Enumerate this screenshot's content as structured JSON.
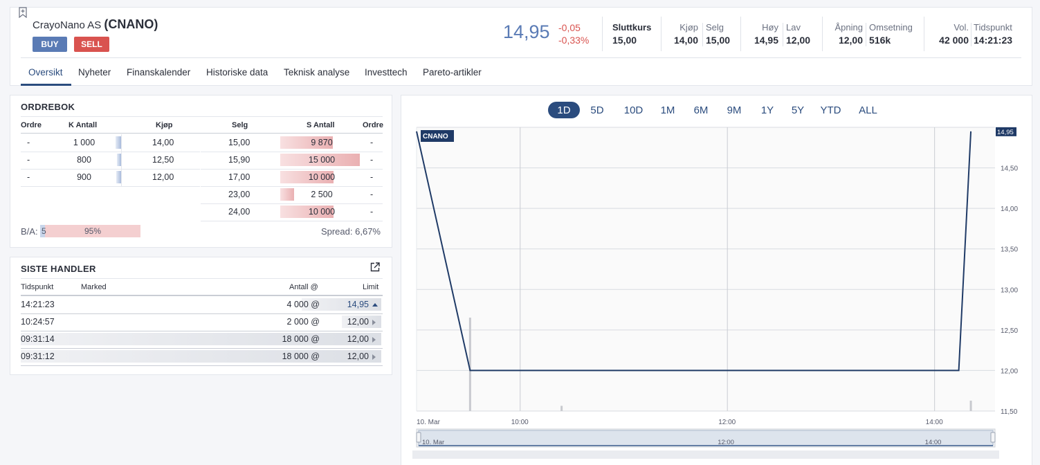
{
  "header": {
    "company_name": "CrayoNano AS",
    "ticker": "(CNANO)",
    "buy_label": "BUY",
    "sell_label": "SELL",
    "last_price": "14,95",
    "change_abs": "-0,05",
    "change_pct": "-0,33%",
    "close_label": "Sluttkurs",
    "close_value": "15,00",
    "bid_label": "Kjøp",
    "bid_value": "14,00",
    "ask_label": "Selg",
    "ask_value": "15,00",
    "high_label": "Høy",
    "high_value": "14,95",
    "low_label": "Lav",
    "low_value": "12,00",
    "open_label": "Åpning",
    "open_value": "12,00",
    "turnover_label": "Omsetning",
    "turnover_value": "516k",
    "volume_label": "Vol.",
    "volume_value": "42 000",
    "time_label": "Tidspunkt",
    "time_value": "14:21:23"
  },
  "tabs": [
    "Oversikt",
    "Nyheter",
    "Finanskalender",
    "Historiske data",
    "Teknisk analyse",
    "Investtech",
    "Pareto-artikler"
  ],
  "active_tab": "Oversikt",
  "orderbook": {
    "title": "ORDREBOK",
    "headers": [
      "Ordre",
      "K Antall",
      "Kjøp",
      "Selg",
      "S Antall",
      "Ordre"
    ],
    "bids": [
      {
        "orders": "-",
        "qty": "1 000",
        "price": "14,00",
        "fill": 0.07
      },
      {
        "orders": "-",
        "qty": "800",
        "price": "12,50",
        "fill": 0.05
      },
      {
        "orders": "-",
        "qty": "900",
        "price": "12,00",
        "fill": 0.06
      }
    ],
    "asks": [
      {
        "price": "15,00",
        "qty": "9 870",
        "orders": "-",
        "fill": 0.66
      },
      {
        "price": "15,90",
        "qty": "15 000",
        "orders": "-",
        "fill": 1.0
      },
      {
        "price": "17,00",
        "qty": "10 000",
        "orders": "-",
        "fill": 0.67
      },
      {
        "price": "23,00",
        "qty": "2 500",
        "orders": "-",
        "fill": 0.17
      },
      {
        "price": "24,00",
        "qty": "10 000",
        "orders": "-",
        "fill": 0.67
      }
    ],
    "ba_label": "B/A:",
    "ba_bid": "5",
    "ba_ask": "95%",
    "ba_bid_fill": 0.05,
    "spread_label": "Spread:",
    "spread_value": "6,67%"
  },
  "trades": {
    "title": "SISTE HANDLER",
    "headers": [
      "Tidspunkt",
      "Marked",
      "Antall @",
      "Limit"
    ],
    "rows": [
      {
        "time": "14:21:23",
        "market": "",
        "qty": "4 000 @",
        "price": "14,95",
        "dir": "up",
        "fill": 0.22
      },
      {
        "time": "10:24:57",
        "market": "",
        "qty": "2 000 @",
        "price": "12,00",
        "dir": "flat",
        "fill": 0.11
      },
      {
        "time": "09:31:14",
        "market": "",
        "qty": "18 000 @",
        "price": "12,00",
        "dir": "flat",
        "fill": 1.0
      },
      {
        "time": "09:31:12",
        "market": "",
        "qty": "18 000 @",
        "price": "12,00",
        "dir": "flat",
        "fill": 1.0
      }
    ]
  },
  "chart": {
    "ranges": [
      "1D",
      "5D",
      "10D",
      "1M",
      "6M",
      "9M",
      "1Y",
      "5Y",
      "YTD",
      "ALL"
    ],
    "active_range": "1D",
    "series_label": "CNANO",
    "last_label": "14,95"
  },
  "chart_data": {
    "type": "line",
    "title": "",
    "xlabel": "",
    "ylabel": "",
    "x_tick_labels": [
      "10. Mar",
      "10:00",
      "12:00",
      "14:00"
    ],
    "y_tick_labels": [
      "11,50",
      "12,00",
      "12,50",
      "13,00",
      "13,50",
      "14,00",
      "14,50"
    ],
    "ylim": [
      11.5,
      15.0
    ],
    "xlim": [
      "09:00",
      "14:35"
    ],
    "series": [
      {
        "name": "CNANO",
        "x": [
          "09:00",
          "09:31",
          "14:14",
          "14:21"
        ],
        "y": [
          14.95,
          12.0,
          12.0,
          14.95
        ]
      }
    ],
    "volume": [
      {
        "x": "09:31",
        "v": 36000
      },
      {
        "x": "10:24",
        "v": 2000
      },
      {
        "x": "14:21",
        "v": 4000
      }
    ],
    "navigator_labels": [
      "10. Mar",
      "12:00",
      "14:00"
    ],
    "grid": true
  },
  "colors": {
    "accent": "#2b4c7e",
    "price_blue": "#5a7bb5",
    "negative": "#d9534f",
    "ask_bar": "#f4cfd0",
    "bid_bar": "#c8d5ea"
  }
}
